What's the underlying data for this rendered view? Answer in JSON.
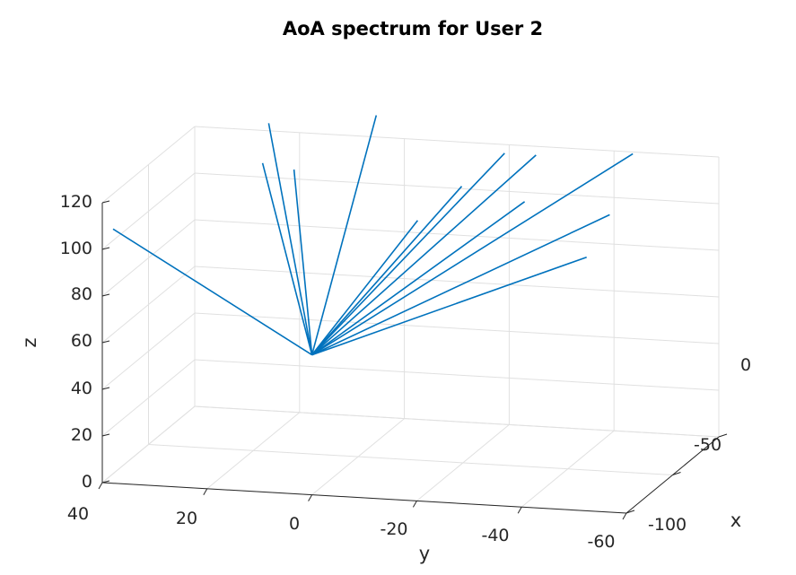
{
  "chart_data": {
    "type": "line",
    "title": "AoA spectrum for User 2",
    "xlabel": "x",
    "ylabel": "y",
    "zlabel": "z",
    "x_ticks": [
      "0",
      "-50",
      "-100"
    ],
    "y_ticks": [
      "40",
      "20",
      "0",
      "-20",
      "-40",
      "-60"
    ],
    "z_ticks": [
      "0",
      "20",
      "40",
      "60",
      "80",
      "100",
      "120"
    ],
    "xlim": [
      -100,
      0
    ],
    "ylim": [
      -60,
      40
    ],
    "zlim": [
      0,
      120
    ],
    "grid": true,
    "origin": {
      "x": 0,
      "y": 0,
      "z": 60
    },
    "series": [
      {
        "values": [
          [
            0,
            0,
            60
          ],
          [
            -40,
            45,
            95
          ]
        ]
      },
      {
        "values": [
          [
            0,
            0,
            60
          ],
          [
            -95,
            25,
            125
          ]
        ]
      },
      {
        "values": [
          [
            0,
            0,
            60
          ],
          [
            -98,
            5,
            130
          ]
        ]
      },
      {
        "values": [
          [
            0,
            0,
            60
          ],
          [
            -60,
            20,
            120
          ]
        ]
      },
      {
        "values": [
          [
            0,
            0,
            60
          ],
          [
            -60,
            14,
            118
          ]
        ]
      },
      {
        "values": [
          [
            0,
            0,
            60
          ],
          [
            -95,
            -20,
            118
          ]
        ]
      },
      {
        "values": [
          [
            0,
            0,
            60
          ],
          [
            -95,
            -26,
            118
          ]
        ]
      },
      {
        "values": [
          [
            0,
            0,
            60
          ],
          [
            -60,
            -18,
            115
          ]
        ]
      },
      {
        "values": [
          [
            0,
            0,
            60
          ],
          [
            -35,
            -14,
            108
          ]
        ]
      },
      {
        "values": [
          [
            0,
            0,
            60
          ],
          [
            -60,
            -30,
            110
          ]
        ]
      },
      {
        "values": [
          [
            0,
            0,
            60
          ],
          [
            -75,
            -48,
            128
          ]
        ]
      },
      {
        "values": [
          [
            0,
            0,
            60
          ],
          [
            -50,
            -48,
            110
          ]
        ]
      },
      {
        "values": [
          [
            0,
            0,
            60
          ],
          [
            -25,
            -48,
            100
          ]
        ]
      }
    ]
  }
}
